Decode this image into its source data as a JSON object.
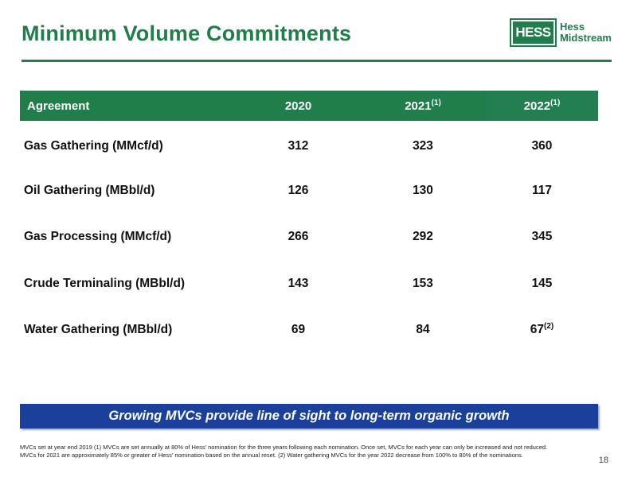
{
  "header": {
    "title": "Minimum Volume Commitments",
    "logo": {
      "mark": "HESS",
      "line1": "Hess",
      "line2": "Midstream"
    }
  },
  "table": {
    "columns": [
      {
        "label": "Agreement",
        "sup": ""
      },
      {
        "label": "2020",
        "sup": ""
      },
      {
        "label": "2021",
        "sup": "(1)"
      },
      {
        "label": "2022",
        "sup": "(1)"
      }
    ],
    "rows": [
      {
        "label": "Gas Gathering (MMcf/d)",
        "v2020": "312",
        "v2021": "323",
        "v2022": "360",
        "v2022_sup": ""
      },
      {
        "label": "Oil Gathering (MBbl/d)",
        "v2020": "126",
        "v2021": "130",
        "v2022": "117",
        "v2022_sup": ""
      },
      {
        "label": "Gas Processing (MMcf/d)",
        "v2020": "266",
        "v2021": "292",
        "v2022": "345",
        "v2022_sup": ""
      },
      {
        "label": "Crude Terminaling (MBbl/d)",
        "v2020": "143",
        "v2021": "153",
        "v2022": "145",
        "v2022_sup": ""
      },
      {
        "label": "Water Gathering (MBbl/d)",
        "v2020": "69",
        "v2021": "84",
        "v2022": "67",
        "v2022_sup": "(2)"
      }
    ]
  },
  "banner": {
    "text": "Growing MVCs provide line of sight to long-term organic growth"
  },
  "footnote": {
    "line1": "MVCs set at year end 2019 (1) MVCs are set annually at 80% of Hess’ nomination for the three years following each nomination. Once set, MVCs for each year can only be increased and not reduced.",
    "line2": "MVCs for 2021 are approximately 85% or greater of Hess’ nomination based on the annual reset. (2) Water gathering MVCs for the year 2022 decrease from 100% to 80% of the nominations."
  },
  "page_number": "18",
  "colors": {
    "brand_green": "#1f7e4a",
    "banner_blue": "#1a409b"
  }
}
